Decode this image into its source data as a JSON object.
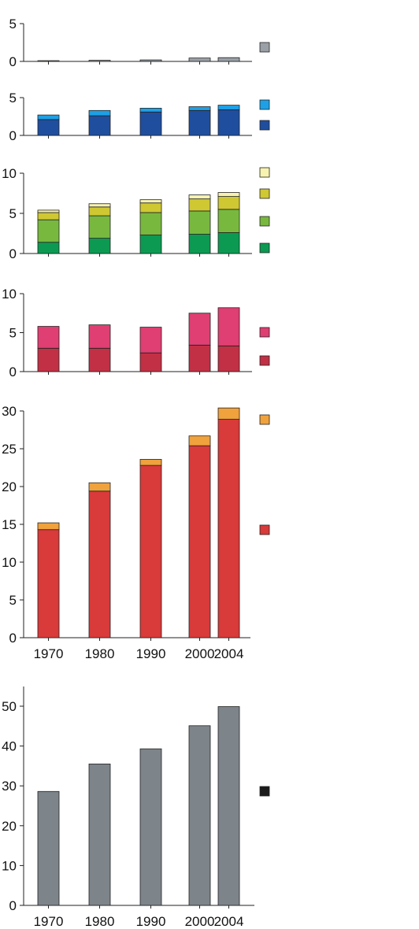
{
  "chart_data": [
    {
      "type": "bar",
      "stacked": true,
      "categories": [
        "1970",
        "1980",
        "1990",
        "2000",
        "2004"
      ],
      "ylim": [
        0,
        5
      ],
      "yticks": [
        "0",
        "5"
      ],
      "show_xtick_labels": false,
      "series": [
        {
          "color": "#9aa0a6",
          "values": [
            0.1,
            0.15,
            0.2,
            0.45,
            0.5
          ]
        }
      ]
    },
    {
      "type": "bar",
      "stacked": true,
      "categories": [
        "1970",
        "1980",
        "1990",
        "2000",
        "2004"
      ],
      "ylim": [
        0,
        5
      ],
      "yticks": [
        "0",
        "5"
      ],
      "show_xtick_labels": false,
      "series": [
        {
          "color": "#1f4e9e",
          "values": [
            2.1,
            2.6,
            3.1,
            3.3,
            3.4
          ]
        },
        {
          "color": "#1ea0e6",
          "values": [
            0.6,
            0.7,
            0.5,
            0.5,
            0.6
          ]
        }
      ]
    },
    {
      "type": "bar",
      "stacked": true,
      "categories": [
        "1970",
        "1980",
        "1990",
        "2000",
        "2004"
      ],
      "ylim": [
        0,
        10
      ],
      "yticks": [
        "0",
        "5",
        "10"
      ],
      "show_xtick_labels": false,
      "series": [
        {
          "color": "#0c9a52",
          "values": [
            1.4,
            1.9,
            2.3,
            2.4,
            2.6
          ]
        },
        {
          "color": "#78b83f",
          "values": [
            2.8,
            2.8,
            2.8,
            2.9,
            2.9
          ]
        },
        {
          "color": "#cfc832",
          "values": [
            0.9,
            1.1,
            1.2,
            1.5,
            1.6
          ]
        },
        {
          "color": "#f7f2b0",
          "values": [
            0.3,
            0.4,
            0.4,
            0.5,
            0.5
          ]
        }
      ]
    },
    {
      "type": "bar",
      "stacked": true,
      "categories": [
        "1970",
        "1980",
        "1990",
        "2000",
        "2004"
      ],
      "ylim": [
        0,
        10
      ],
      "yticks": [
        "0",
        "5",
        "10"
      ],
      "show_xtick_labels": false,
      "series": [
        {
          "color": "#c23045",
          "values": [
            3.0,
            3.0,
            2.4,
            3.4,
            3.3
          ]
        },
        {
          "color": "#df3f72",
          "values": [
            2.8,
            3.0,
            3.3,
            4.1,
            4.9
          ]
        }
      ]
    },
    {
      "type": "bar",
      "stacked": true,
      "categories": [
        "1970",
        "1980",
        "1990",
        "2000",
        "2004"
      ],
      "ylim": [
        0,
        30
      ],
      "yticks": [
        "0",
        "5",
        "10",
        "15",
        "20",
        "25",
        "30"
      ],
      "show_xtick_labels": true,
      "series": [
        {
          "color": "#d93a3a",
          "values": [
            14.3,
            19.4,
            22.8,
            25.4,
            28.9
          ]
        },
        {
          "color": "#f0a23c",
          "values": [
            0.9,
            1.1,
            0.8,
            1.3,
            1.5
          ]
        }
      ]
    },
    {
      "type": "bar",
      "stacked": true,
      "categories": [
        "1970",
        "1980",
        "1990",
        "2000",
        "2004"
      ],
      "ylim": [
        0,
        50
      ],
      "yticks": [
        "0",
        "10",
        "20",
        "30",
        "40",
        "50"
      ],
      "show_xtick_labels": true,
      "series": [
        {
          "color": "#7d848a",
          "values": [
            28.6,
            35.5,
            39.3,
            45.1,
            49.9
          ]
        }
      ]
    }
  ],
  "legend_swatches": [
    [
      "#9aa0a6"
    ],
    [
      "#1ea0e6",
      "#1f4e9e"
    ],
    [
      "#f7f2b0",
      "#cfc832",
      "#78b83f",
      "#0c9a52"
    ],
    [
      "#df3f72",
      "#c23045"
    ],
    [
      "#f0a23c",
      "#d93a3a"
    ],
    [
      "#1b1b1b"
    ]
  ]
}
